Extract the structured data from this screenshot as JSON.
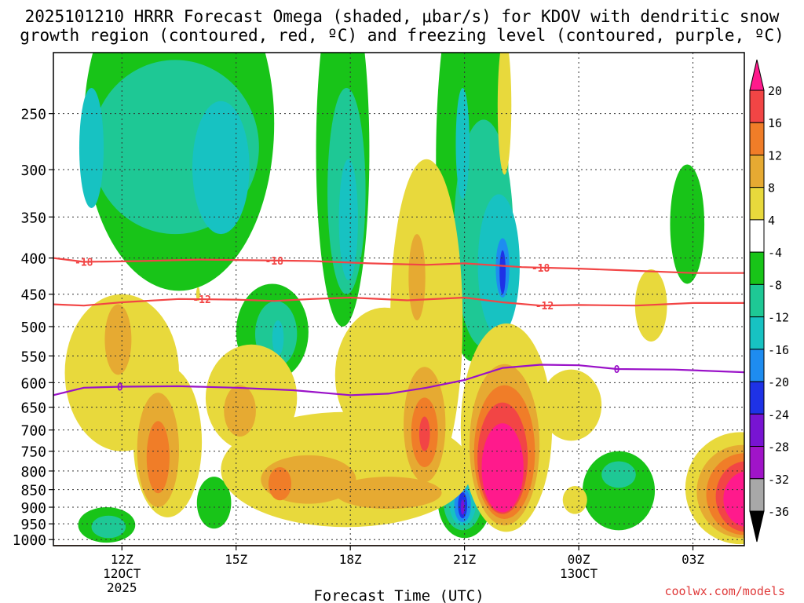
{
  "chart_data": {
    "type": "heatmap",
    "title_line1": "2025101210 HRRR Forecast Omega (shaded, μbar/s) for KDOV with dendritic snow",
    "title_line2": "growth region (contoured, red, ºC) and freezing level (contoured, purple, ºC)",
    "xlabel": "Forecast Time (UTC)",
    "x_range_hours": [
      10.2,
      28.35
    ],
    "x_ticks": [
      {
        "hour": 12,
        "label": "12Z",
        "sub1": "12OCT",
        "sub2": "2025"
      },
      {
        "hour": 15,
        "label": "15Z",
        "sub1": "",
        "sub2": ""
      },
      {
        "hour": 18,
        "label": "18Z",
        "sub1": "",
        "sub2": ""
      },
      {
        "hour": 21,
        "label": "21Z",
        "sub1": "",
        "sub2": ""
      },
      {
        "hour": 24,
        "label": "00Z",
        "sub1": "13OCT",
        "sub2": ""
      },
      {
        "hour": 27,
        "label": "03Z",
        "sub1": "",
        "sub2": ""
      }
    ],
    "y_levels_hpa": [
      250,
      300,
      350,
      400,
      450,
      500,
      550,
      600,
      650,
      700,
      750,
      800,
      850,
      900,
      950,
      1000
    ],
    "y_range_hpa": [
      205,
      1020
    ],
    "colorbar": {
      "labels": [
        "20",
        "16",
        "12",
        "8",
        "4",
        "-4",
        "-8",
        "-12",
        "-16",
        "-20",
        "-24",
        "-28",
        "-32",
        "-36"
      ],
      "colors": [
        "#ff1a8c",
        "#f24545",
        "#f07d28",
        "#e6aa32",
        "#e8d93c",
        "#ffffff",
        "#18c418",
        "#1ec895",
        "#17c2c2",
        "#1e8cf0",
        "#1e32e6",
        "#7814d2",
        "#a014c8",
        "#a8a8a8",
        "#000000"
      ]
    },
    "omega_regions": [
      {
        "level": -8,
        "cx": 11.6,
        "cp": 955,
        "rx": 0.75,
        "rp": 55
      },
      {
        "level": -12,
        "cx": 11.65,
        "cp": 960,
        "rx": 0.45,
        "rp": 35
      },
      {
        "level": -8,
        "cx": 14.42,
        "cp": 890,
        "rx": 0.45,
        "rp": 75
      },
      {
        "level": -8,
        "cx": 13.5,
        "cp": 295,
        "rx": 2.5,
        "rp": 150
      },
      {
        "level": -12,
        "cx": 13.4,
        "cp": 290,
        "rx": 2.2,
        "rp": 80
      },
      {
        "level": -16,
        "cx": 11.2,
        "cp": 285,
        "rx": 0.32,
        "rp": 55
      },
      {
        "level": -16,
        "cx": 14.6,
        "cp": 305,
        "rx": 0.75,
        "rp": 65
      },
      {
        "level": -8,
        "cx": 15.95,
        "cp": 515,
        "rx": 0.95,
        "rp": 80
      },
      {
        "level": -12,
        "cx": 16.05,
        "cp": 515,
        "rx": 0.55,
        "rp": 55
      },
      {
        "level": -16,
        "cx": 16.1,
        "cp": 520,
        "rx": 0.15,
        "rp": 30
      },
      {
        "level": -8,
        "cx": 17.8,
        "cp": 330,
        "rx": 0.7,
        "rp": 170
      },
      {
        "level": -12,
        "cx": 17.9,
        "cp": 340,
        "rx": 0.5,
        "rp": 110
      },
      {
        "level": -16,
        "cx": 17.95,
        "cp": 360,
        "rx": 0.25,
        "rp": 70
      },
      {
        "level": -8,
        "cx": 21.2,
        "cp": 330,
        "rx": 0.95,
        "rp": 230
      },
      {
        "level": -12,
        "cx": 21.5,
        "cp": 395,
        "rx": 0.78,
        "rp": 140
      },
      {
        "level": -16,
        "cx": 21.9,
        "cp": 420,
        "rx": 0.55,
        "rp": 95
      },
      {
        "level": -20,
        "cx": 22.0,
        "cp": 415,
        "rx": 0.18,
        "rp": 40
      },
      {
        "level": -24,
        "cx": 22.0,
        "cp": 420,
        "rx": 0.08,
        "rp": 30
      },
      {
        "level": -16,
        "cx": 20.95,
        "cp": 280,
        "rx": 0.18,
        "rp": 50
      },
      {
        "level": -8,
        "cx": 26.85,
        "cp": 365,
        "rx": 0.45,
        "rp": 70
      },
      {
        "level": -8,
        "cx": 21.0,
        "cp": 890,
        "rx": 0.7,
        "rp": 105
      },
      {
        "level": -12,
        "cx": 20.95,
        "cp": 890,
        "rx": 0.5,
        "rp": 80
      },
      {
        "level": -16,
        "cx": 20.95,
        "cp": 890,
        "rx": 0.35,
        "rp": 65
      },
      {
        "level": -20,
        "cx": 20.95,
        "cp": 895,
        "rx": 0.22,
        "rp": 50
      },
      {
        "level": -24,
        "cx": 20.95,
        "cp": 895,
        "rx": 0.12,
        "rp": 38
      },
      {
        "level": -28,
        "cx": 20.95,
        "cp": 900,
        "rx": 0.05,
        "rp": 22
      },
      {
        "level": -8,
        "cx": 25.05,
        "cp": 860,
        "rx": 0.95,
        "rp": 110
      },
      {
        "level": -12,
        "cx": 25.05,
        "cp": 810,
        "rx": 0.45,
        "rp": 35
      },
      {
        "level": 4,
        "cx": 12.0,
        "cp": 600,
        "rx": 1.5,
        "rp": 150
      },
      {
        "level": 4,
        "cx": 13.2,
        "cp": 750,
        "rx": 0.9,
        "rp": 180
      },
      {
        "level": 8,
        "cx": 11.9,
        "cp": 525,
        "rx": 0.35,
        "rp": 60
      },
      {
        "level": 8,
        "cx": 12.95,
        "cp": 760,
        "rx": 0.55,
        "rp": 140
      },
      {
        "level": 12,
        "cx": 12.95,
        "cp": 770,
        "rx": 0.3,
        "rp": 90
      },
      {
        "level": 4,
        "cx": 15.4,
        "cp": 640,
        "rx": 1.2,
        "rp": 110
      },
      {
        "level": 8,
        "cx": 15.1,
        "cp": 660,
        "rx": 0.42,
        "rp": 55
      },
      {
        "level": 4,
        "cx": 17.9,
        "cp": 810,
        "rx": 3.3,
        "rp": 150
      },
      {
        "level": 4,
        "cx": 18.9,
        "cp": 600,
        "rx": 1.3,
        "rp": 130
      },
      {
        "level": 4,
        "cx": 20.0,
        "cp": 560,
        "rx": 0.95,
        "rp": 270
      },
      {
        "level": 8,
        "cx": 16.9,
        "cp": 825,
        "rx": 1.25,
        "rp": 65
      },
      {
        "level": 12,
        "cx": 16.15,
        "cp": 835,
        "rx": 0.3,
        "rp": 45
      },
      {
        "level": 8,
        "cx": 19.0,
        "cp": 860,
        "rx": 1.4,
        "rp": 45
      },
      {
        "level": 8,
        "cx": 19.75,
        "cp": 430,
        "rx": 0.22,
        "rp": 60
      },
      {
        "level": 8,
        "cx": 19.95,
        "cp": 700,
        "rx": 0.55,
        "rp": 130
      },
      {
        "level": 12,
        "cx": 19.95,
        "cp": 710,
        "rx": 0.35,
        "rp": 80
      },
      {
        "level": 16,
        "cx": 19.95,
        "cp": 710,
        "rx": 0.14,
        "rp": 40
      },
      {
        "level": 4,
        "cx": 22.1,
        "cp": 735,
        "rx": 1.2,
        "rp": 240
      },
      {
        "level": 8,
        "cx": 22.05,
        "cp": 760,
        "rx": 0.92,
        "rp": 195
      },
      {
        "level": 12,
        "cx": 22.05,
        "cp": 770,
        "rx": 0.8,
        "rp": 165
      },
      {
        "level": 16,
        "cx": 22.0,
        "cp": 780,
        "rx": 0.66,
        "rp": 140
      },
      {
        "level": 20,
        "cx": 22.0,
        "cp": 800,
        "rx": 0.55,
        "rp": 115
      },
      {
        "level": 4,
        "cx": 23.8,
        "cp": 650,
        "rx": 0.8,
        "rp": 75
      },
      {
        "level": 4,
        "cx": 23.9,
        "cp": 880,
        "rx": 0.32,
        "rp": 40
      },
      {
        "level": 4,
        "cx": 22.05,
        "cp": 250,
        "rx": 0.18,
        "rp": 55
      },
      {
        "level": 4,
        "cx": 25.9,
        "cp": 470,
        "rx": 0.42,
        "rp": 55
      },
      {
        "level": 4,
        "cx": 14.0,
        "cp": 450,
        "rx": 0.05,
        "rp": 10
      },
      {
        "level": 4,
        "cx": 28.25,
        "cp": 860,
        "rx": 1.45,
        "rp": 155
      },
      {
        "level": 8,
        "cx": 28.3,
        "cp": 865,
        "rx": 1.2,
        "rp": 130
      },
      {
        "level": 12,
        "cx": 28.35,
        "cp": 870,
        "rx": 1.0,
        "rp": 115
      },
      {
        "level": 16,
        "cx": 28.4,
        "cp": 875,
        "rx": 0.8,
        "rp": 100
      },
      {
        "level": 20,
        "cx": 28.45,
        "cp": 880,
        "rx": 0.65,
        "rp": 80
      }
    ],
    "contours": [
      {
        "name": "-18",
        "color": "#f24545",
        "label": "-18",
        "points": [
          [
            10.2,
            400
          ],
          [
            11.0,
            405
          ],
          [
            12.5,
            404
          ],
          [
            14.0,
            402
          ],
          [
            15.5,
            403
          ],
          [
            17.0,
            404
          ],
          [
            18.5,
            407
          ],
          [
            20.0,
            409
          ],
          [
            21.0,
            407
          ],
          [
            22.5,
            412
          ],
          [
            24.0,
            414
          ],
          [
            25.5,
            417
          ],
          [
            27.0,
            420
          ],
          [
            28.35,
            420
          ]
        ],
        "label_hours": [
          11.0,
          16.0,
          23.0
        ]
      },
      {
        "name": "-12",
        "color": "#f24545",
        "label": "-12",
        "points": [
          [
            10.2,
            465
          ],
          [
            11.0,
            467
          ],
          [
            12.0,
            462
          ],
          [
            13.5,
            457
          ],
          [
            15.0,
            458
          ],
          [
            16.0,
            460
          ],
          [
            17.0,
            457
          ],
          [
            18.0,
            455
          ],
          [
            19.5,
            459
          ],
          [
            21.0,
            455
          ],
          [
            22.0,
            462
          ],
          [
            23.0,
            467
          ],
          [
            24.0,
            466
          ],
          [
            25.5,
            467
          ],
          [
            27.0,
            463
          ],
          [
            28.35,
            463
          ]
        ],
        "label_hours": [
          14.1,
          23.1
        ]
      },
      {
        "name": "0",
        "color": "#9a12c8",
        "label": "0",
        "points": [
          [
            10.2,
            625
          ],
          [
            11.0,
            610
          ],
          [
            12.0,
            608
          ],
          [
            13.5,
            607
          ],
          [
            15.0,
            610
          ],
          [
            16.5,
            615
          ],
          [
            18.0,
            625
          ],
          [
            19.0,
            622
          ],
          [
            20.0,
            610
          ],
          [
            21.0,
            595
          ],
          [
            22.0,
            572
          ],
          [
            23.0,
            566
          ],
          [
            24.0,
            567
          ],
          [
            25.0,
            574
          ],
          [
            26.5,
            575
          ],
          [
            28.35,
            580
          ]
        ],
        "label_hours": [
          11.95,
          25.0
        ]
      }
    ],
    "ground_level_hpa": 1010
  },
  "x_axis_label": "Forecast Time (UTC)",
  "credit": "coolwx.com/models"
}
